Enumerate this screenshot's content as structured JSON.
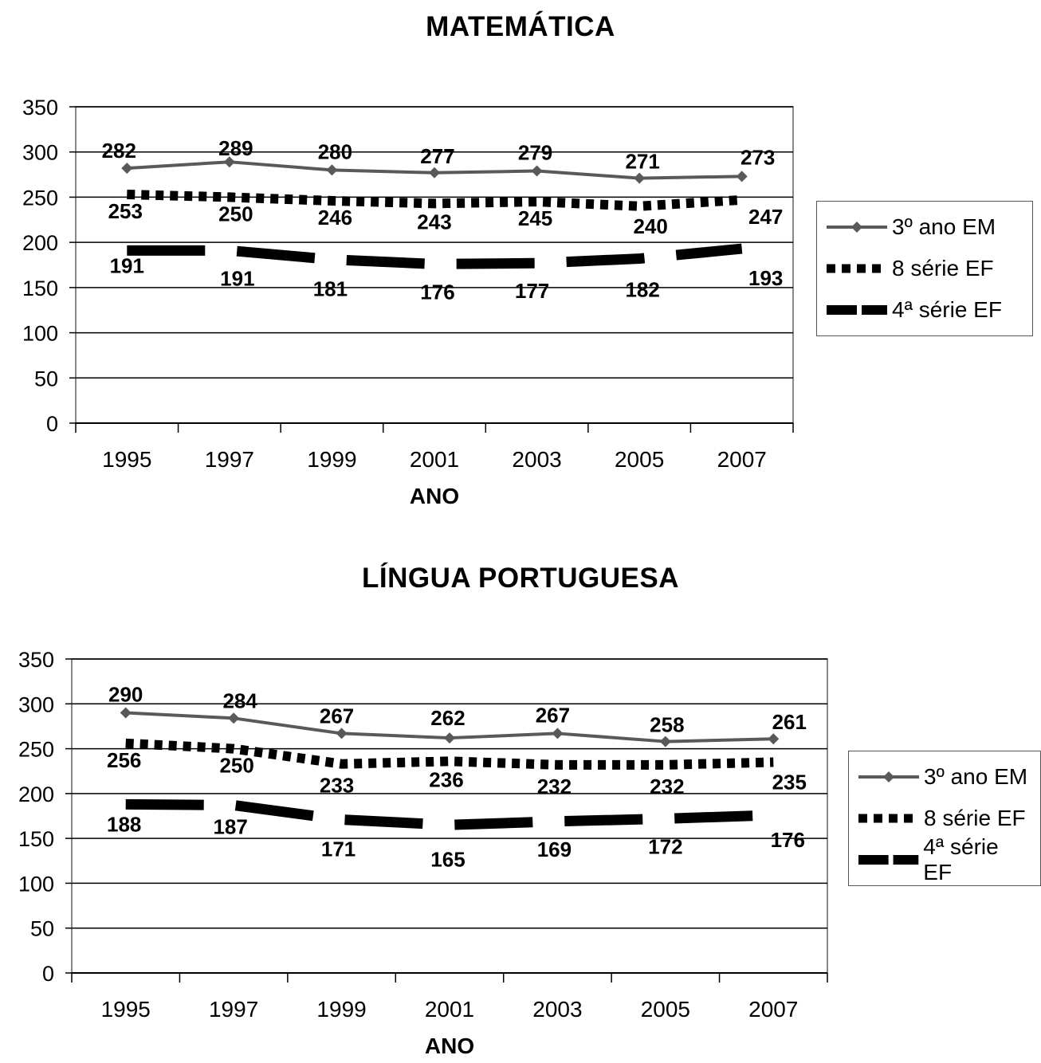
{
  "chart_data": [
    {
      "type": "line",
      "title": "MATEMÁTICA",
      "xlabel": "ANO",
      "ylabel": "",
      "categories": [
        "1995",
        "1997",
        "1999",
        "2001",
        "2003",
        "2005",
        "2007"
      ],
      "ylim": [
        0,
        350
      ],
      "yticks": [
        0,
        50,
        100,
        150,
        200,
        250,
        300,
        350
      ],
      "grid": true,
      "legend_position": "right",
      "series": [
        {
          "name": "3º ano EM",
          "style": "solid-marker",
          "color": "#595959",
          "values": [
            282,
            289,
            280,
            277,
            279,
            271,
            273
          ]
        },
        {
          "name": "8 série EF",
          "style": "dotted",
          "color": "#000000",
          "values": [
            253,
            250,
            246,
            243,
            245,
            240,
            247
          ]
        },
        {
          "name": "4ª série EF",
          "style": "dashed",
          "color": "#000000",
          "values": [
            191,
            191,
            181,
            176,
            177,
            182,
            193
          ]
        }
      ]
    },
    {
      "type": "line",
      "title": "LÍNGUA PORTUGUESA",
      "xlabel": "ANO",
      "ylabel": "",
      "categories": [
        "1995",
        "1997",
        "1999",
        "2001",
        "2003",
        "2005",
        "2007"
      ],
      "ylim": [
        0,
        350
      ],
      "yticks": [
        0,
        50,
        100,
        150,
        200,
        250,
        300,
        350
      ],
      "grid": true,
      "legend_position": "right",
      "series": [
        {
          "name": "3º ano EM",
          "style": "solid-marker",
          "color": "#595959",
          "values": [
            290,
            284,
            267,
            262,
            267,
            258,
            261
          ]
        },
        {
          "name": "8 série EF",
          "style": "dotted",
          "color": "#000000",
          "values": [
            256,
            250,
            233,
            236,
            232,
            232,
            235
          ]
        },
        {
          "name": "4ª série EF",
          "style": "dashed",
          "color": "#000000",
          "values": [
            188,
            187,
            171,
            165,
            169,
            172,
            176
          ]
        }
      ]
    }
  ]
}
